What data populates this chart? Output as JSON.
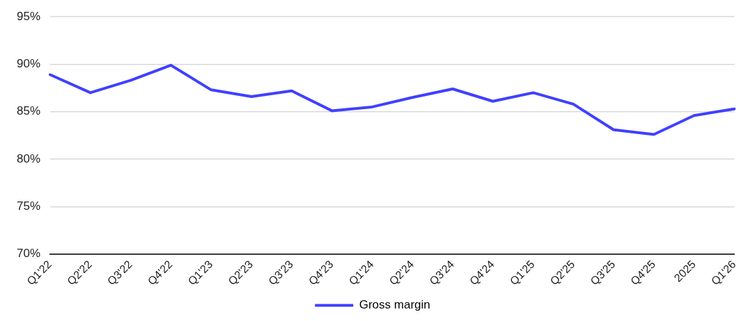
{
  "chart_data": {
    "type": "line",
    "categories": [
      "Q1'22",
      "Q2'22",
      "Q3'22",
      "Q4'22",
      "Q1'23",
      "Q2'23",
      "Q3'23",
      "Q4'23",
      "Q1'24",
      "Q2'24",
      "Q3'24",
      "Q4'24",
      "Q1'25",
      "Q2'25",
      "Q3'25",
      "Q4'25",
      "2025",
      "Q1'26"
    ],
    "series": [
      {
        "name": "Gross margin",
        "color": "#4040ff",
        "values": [
          88.9,
          87.0,
          88.3,
          89.9,
          87.3,
          86.6,
          87.2,
          85.1,
          85.5,
          86.5,
          87.4,
          86.1,
          87.0,
          85.8,
          83.1,
          82.6,
          84.6,
          85.3
        ]
      }
    ],
    "ylim": [
      70,
      95
    ],
    "yticks": [
      {
        "value": 70,
        "label": "70%"
      },
      {
        "value": 75,
        "label": "75%"
      },
      {
        "value": 80,
        "label": "80%"
      },
      {
        "value": 85,
        "label": "85%"
      },
      {
        "value": 90,
        "label": "90%"
      },
      {
        "value": 95,
        "label": "95%"
      }
    ],
    "grid": "y",
    "legend": "bottom",
    "marker": "none",
    "line_style": "solid"
  }
}
